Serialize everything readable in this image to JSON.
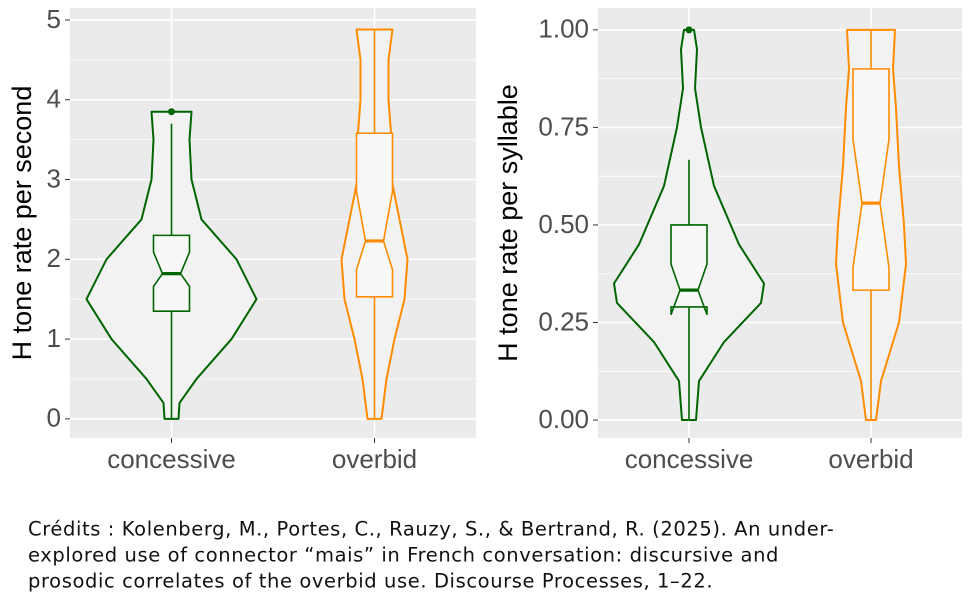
{
  "chart_data": [
    {
      "type": "violin",
      "ylabel": "H tone rate per second",
      "categories": [
        "concessive",
        "overbid"
      ],
      "ylim": [
        -0.24,
        5.15
      ],
      "yticks": [
        0,
        1,
        2,
        3,
        4,
        5
      ],
      "grid": true,
      "series": [
        {
          "name": "concessive",
          "color": "#006400",
          "box": {
            "whisker_low": 0,
            "q1": 1.35,
            "median": 1.82,
            "q3": 2.3,
            "whisker_high": 3.7,
            "notch": [
              1.66,
              2.09
            ]
          },
          "outliers": [
            3.85
          ],
          "violin": {
            "y": [
              0,
              0.2,
              0.5,
              1.0,
              1.5,
              2.0,
              2.5,
              3.0,
              3.5,
              3.85
            ],
            "density": [
              0.07,
              0.08,
              0.25,
              0.6,
              0.85,
              0.65,
              0.3,
              0.2,
              0.18,
              0.2
            ]
          }
        },
        {
          "name": "overbid",
          "color": "#ff8c00",
          "box": {
            "whisker_low": 0,
            "q1": 1.53,
            "median": 2.23,
            "q3": 3.58,
            "whisker_high": 4.88,
            "notch": [
              1.87,
              2.85
            ]
          },
          "outliers": [],
          "violin": {
            "y": [
              0,
              0.5,
              1.0,
              1.5,
              2.0,
              2.5,
              3.0,
              3.5,
              4.0,
              4.5,
              4.88
            ],
            "density": [
              0.07,
              0.12,
              0.2,
              0.3,
              0.33,
              0.25,
              0.17,
              0.17,
              0.14,
              0.14,
              0.18
            ]
          }
        }
      ]
    },
    {
      "type": "violin",
      "ylabel": "H tone rate per syllable",
      "categories": [
        "concessive",
        "overbid"
      ],
      "ylim": [
        -0.046,
        1.056
      ],
      "yticks": [
        {
          "value": 0,
          "label": "0.00"
        },
        {
          "value": 0.25,
          "label": "0.25"
        },
        {
          "value": 0.5,
          "label": "0.50"
        },
        {
          "value": 0.75,
          "label": "0.75"
        },
        {
          "value": 1,
          "label": "1.00"
        }
      ],
      "grid": true,
      "series": [
        {
          "name": "concessive",
          "color": "#006400",
          "box": {
            "whisker_low": 0,
            "q1": 0.29,
            "median": 0.333,
            "q3": 0.5,
            "whisker_high": 0.667,
            "notch": [
              0.27,
              0.4
            ]
          },
          "outliers": [
            1.0
          ],
          "violin": {
            "y": [
              0,
              0.1,
              0.2,
              0.3,
              0.35,
              0.45,
              0.6,
              0.75,
              0.85,
              0.95,
              1.0
            ],
            "density": [
              0.07,
              0.1,
              0.35,
              0.72,
              0.75,
              0.5,
              0.25,
              0.12,
              0.06,
              0.08,
              0.05
            ]
          }
        },
        {
          "name": "overbid",
          "color": "#ff8c00",
          "box": {
            "whisker_low": 0,
            "q1": 0.333,
            "median": 0.556,
            "q3": 0.9,
            "whisker_high": 1.0,
            "notch": [
              0.39,
              0.72
            ]
          },
          "outliers": [],
          "violin": {
            "y": [
              0,
              0.1,
              0.25,
              0.4,
              0.5,
              0.65,
              0.8,
              0.9,
              1.0
            ],
            "density": [
              0.05,
              0.1,
              0.28,
              0.35,
              0.33,
              0.28,
              0.25,
              0.22,
              0.24
            ]
          }
        }
      ]
    }
  ],
  "caption": [
    "Crédits : Kolenberg, M., Portes, C., Rauzy, S., & Bertrand, R. (2025). An under-",
    "explored use of connector “mais” in French conversation: discursive and",
    "prosodic correlates of the overbid use. Discourse Processes, 1–22."
  ]
}
